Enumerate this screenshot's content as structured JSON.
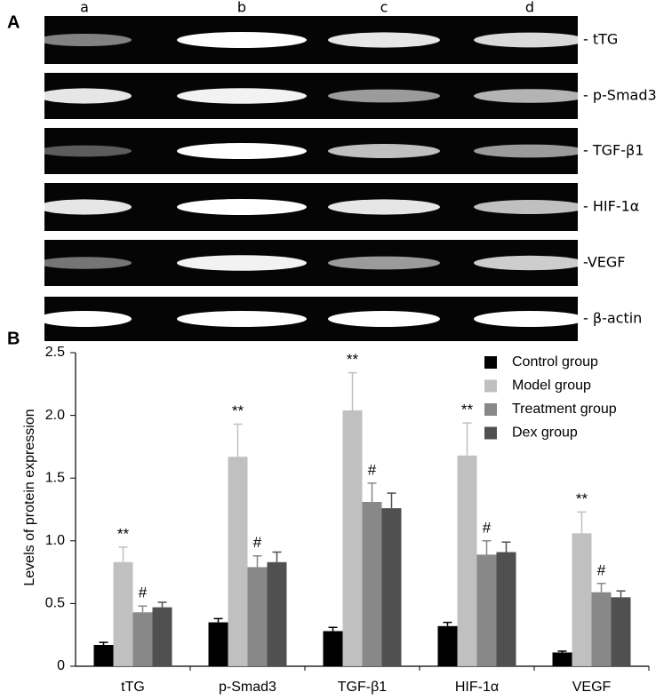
{
  "panel_a": {
    "label": "A",
    "lanes": [
      "a",
      "b",
      "c",
      "d"
    ],
    "bands": [
      "- tTG",
      "- p-Smad3",
      "- TGF-β1",
      "- HIF-1α",
      "-VEGF",
      "- β-actin"
    ]
  },
  "chart_data": {
    "type": "bar",
    "panel_label": "B",
    "y_label": "Levels of protein expression",
    "categories": [
      "tTG",
      "p-Smad3",
      "TGF-β1",
      "HIF-1α",
      "VEGF"
    ],
    "series": [
      {
        "name": "Control group",
        "color": "#000000",
        "values": [
          0.17,
          0.35,
          0.28,
          0.32,
          0.11
        ],
        "errors": [
          0.02,
          0.03,
          0.03,
          0.03,
          0.01
        ]
      },
      {
        "name": "Model group",
        "color": "#c0c0c0",
        "values": [
          0.83,
          1.67,
          2.04,
          1.68,
          1.06
        ],
        "errors": [
          0.12,
          0.26,
          0.3,
          0.26,
          0.17
        ],
        "annotations": [
          "**",
          "**",
          "**",
          "**",
          "**"
        ]
      },
      {
        "name": "Treatment group",
        "color": "#888888",
        "values": [
          0.43,
          0.79,
          1.31,
          0.89,
          0.59
        ],
        "errors": [
          0.05,
          0.09,
          0.15,
          0.11,
          0.07
        ],
        "annotations": [
          "#",
          "#",
          "#",
          "#",
          "#"
        ]
      },
      {
        "name": "Dex group",
        "color": "#505050",
        "values": [
          0.47,
          0.83,
          1.26,
          0.91,
          0.55
        ],
        "errors": [
          0.04,
          0.08,
          0.12,
          0.08,
          0.05
        ]
      }
    ],
    "ylim": [
      0,
      2.5
    ],
    "yticks": [
      0,
      0.5,
      {
        "value": 1,
        "label": "1.0"
      },
      1.5,
      {
        "value": 2,
        "label": "2.0"
      },
      2.5
    ],
    "grid": false,
    "legend": "top-right"
  }
}
